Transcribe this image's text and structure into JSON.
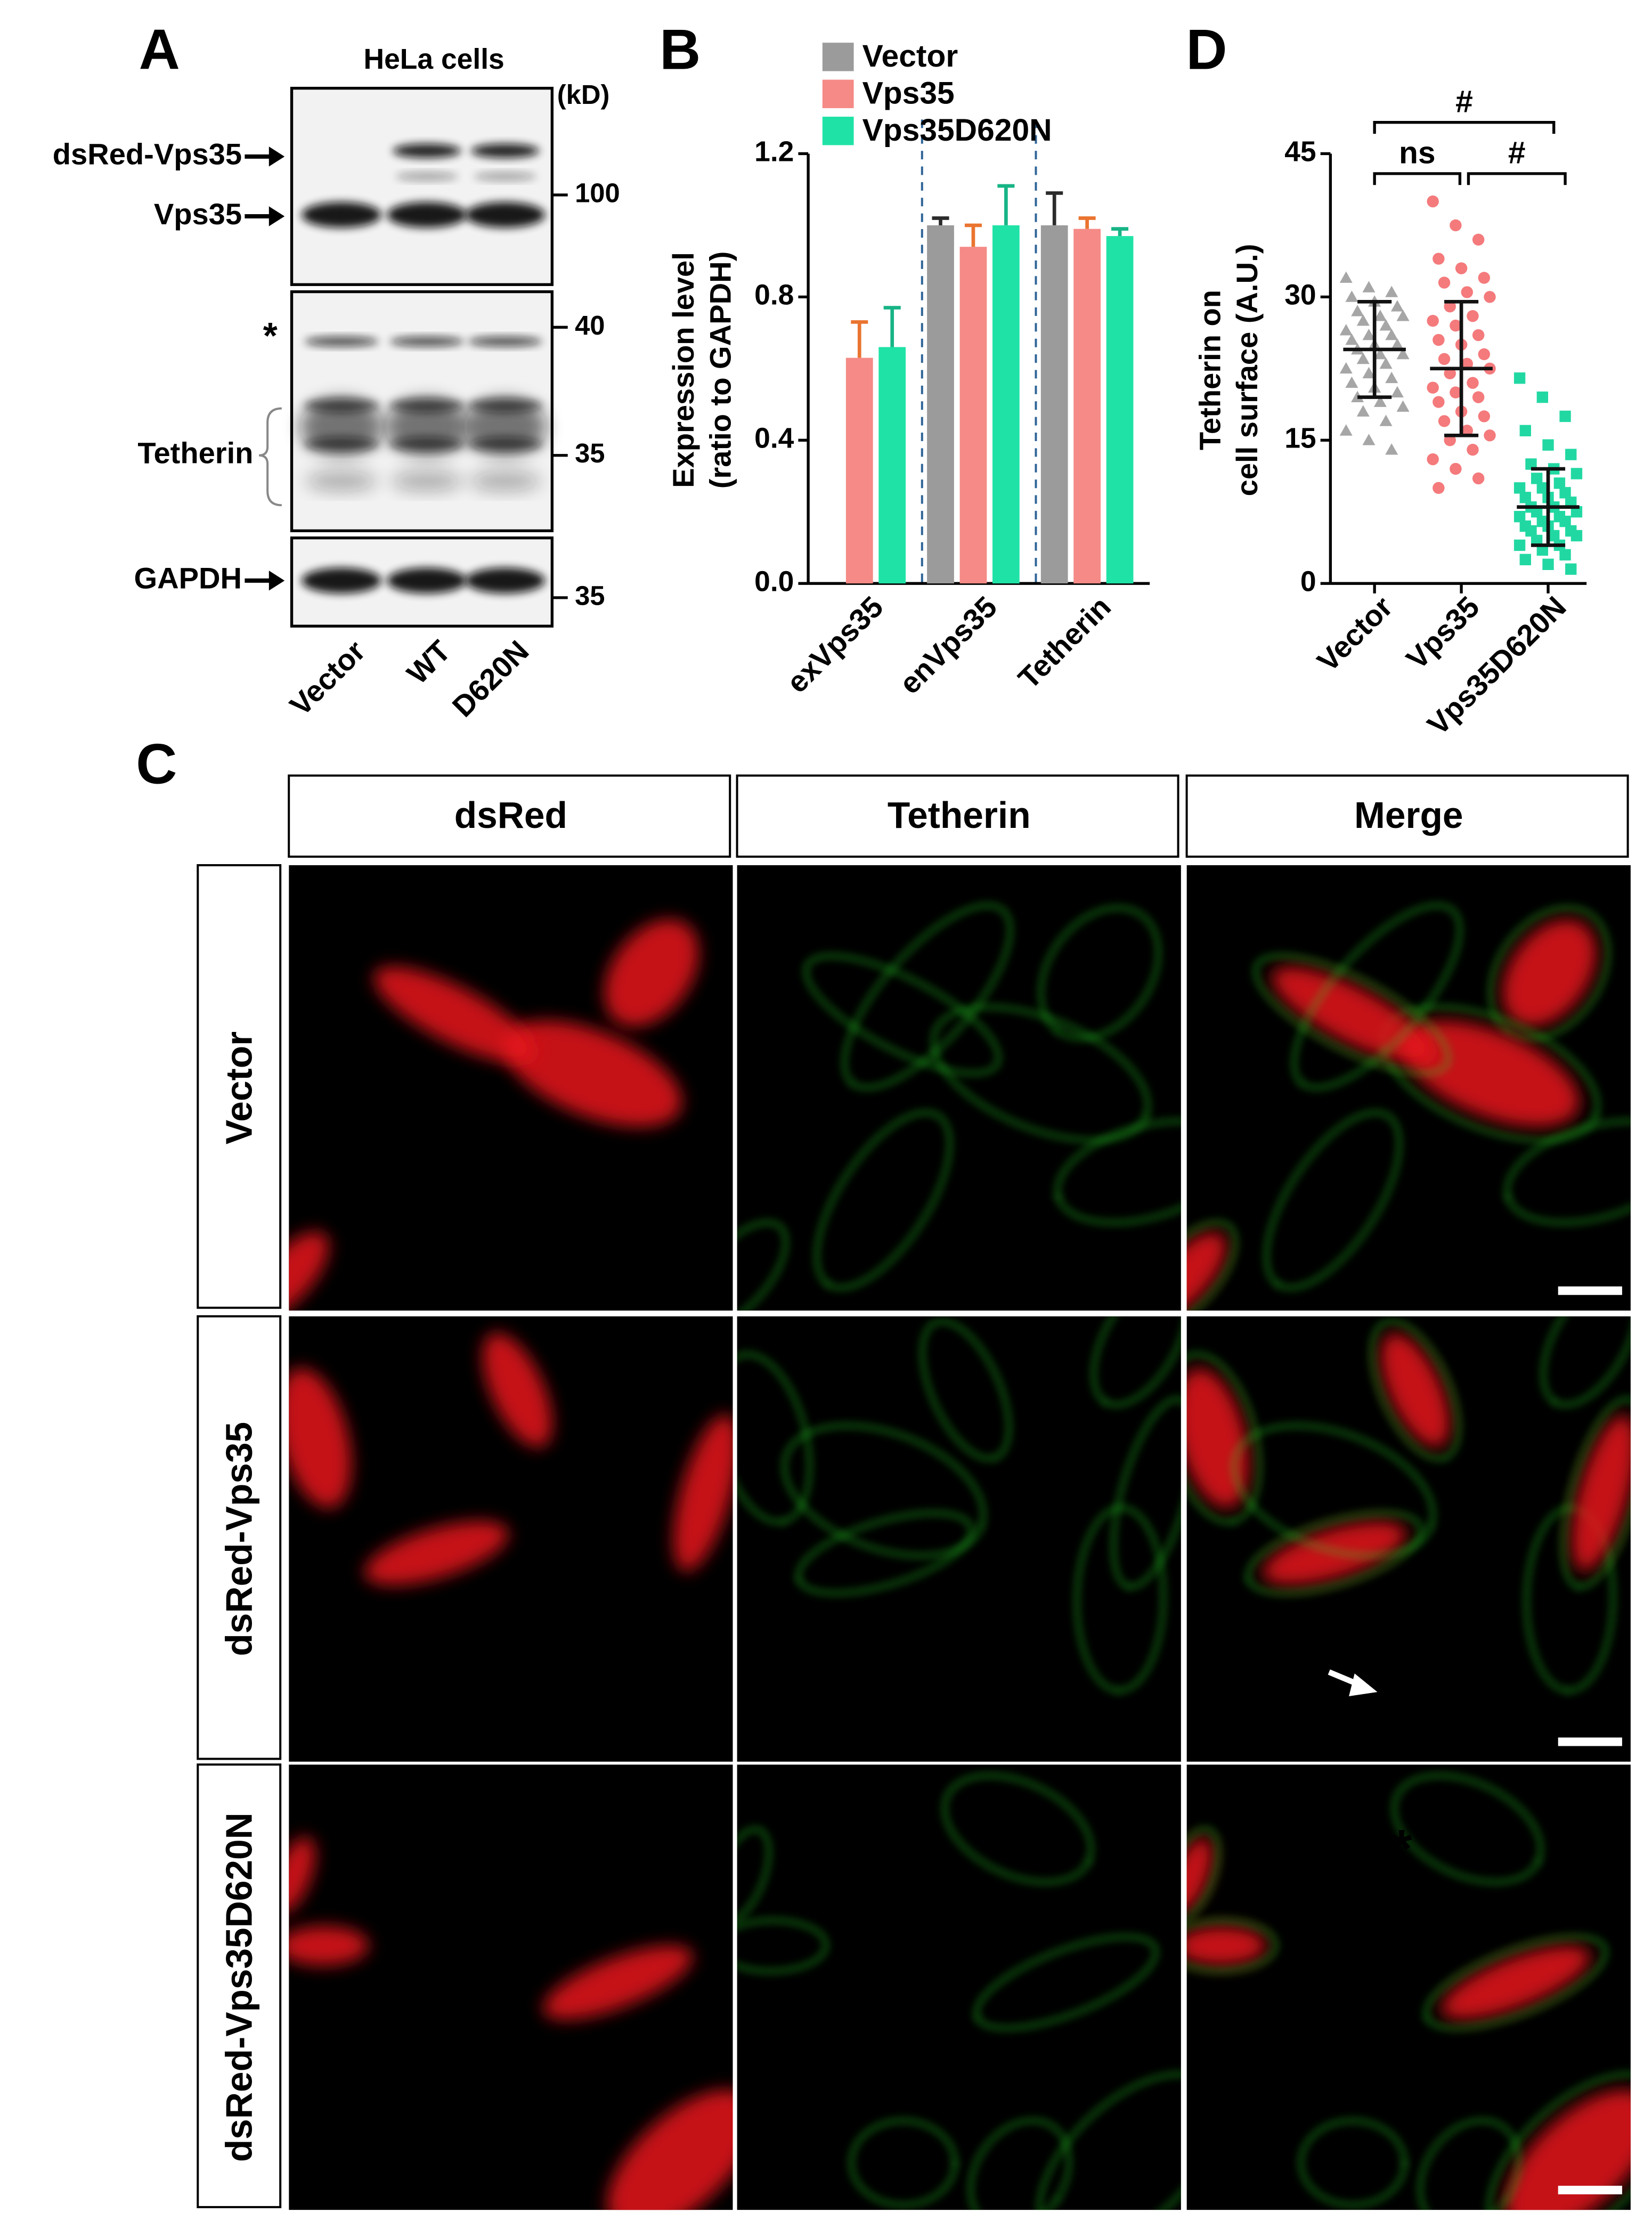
{
  "blot": {
    "panel_label": "A",
    "title": "HeLa cells",
    "unit": "(kD)",
    "row_labels": [
      "dsRed-Vps35",
      "Vps35",
      "*",
      "Tetherin",
      "GAPDH"
    ],
    "markers": [
      "100",
      "40",
      "35",
      "35"
    ],
    "lanes": [
      "Vector",
      "WT",
      "D620N"
    ]
  },
  "micrograph": {
    "panel_label": "C",
    "columns": [
      "dsRed",
      "Tetherin",
      "Merge"
    ],
    "column_colors": [
      "#f0202c",
      "#19d419",
      "#111111"
    ],
    "rows": [
      "Vector",
      "dsRed-Vps35",
      "dsRed-Vps35D620N"
    ],
    "annotation": "*"
  },
  "chart_data": [
    {
      "panel_label": "B",
      "type": "bar",
      "y_label": [
        "Expression level",
        "(ratio to GAPDH)"
      ],
      "categories": [
        "exVps35",
        "enVps35",
        "Tetherin"
      ],
      "series": [
        {
          "name": "Vector",
          "color": "#9b9b9b",
          "error_color": "#2b2b2b",
          "values": [
            null,
            1.0,
            1.0
          ],
          "errors": [
            null,
            0.02,
            0.09
          ]
        },
        {
          "name": "Vps35",
          "color": "#f58a86",
          "error_color": "#ea7430",
          "values": [
            0.63,
            0.94,
            0.99
          ],
          "errors": [
            0.1,
            0.06,
            0.03
          ]
        },
        {
          "name": "Vps35D620N",
          "color": "#1fe3a6",
          "error_color": "#17b486",
          "values": [
            0.66,
            1.0,
            0.97
          ],
          "errors": [
            0.11,
            0.11,
            0.02
          ]
        }
      ],
      "ylim": [
        0,
        1.2
      ],
      "yticks": [
        {
          "value": 0,
          "label": "0.0"
        },
        0.4,
        0.8,
        1.2
      ]
    },
    {
      "panel_label": "D",
      "type": "scatter",
      "y_label": [
        "Tetherin on",
        "cell surface (A.U.)"
      ],
      "categories": [
        "Vector",
        "Vps35",
        "Vps35D620N"
      ],
      "series": [
        {
          "color": "#a6a6a6",
          "marker": "triangle",
          "mean": 24.5,
          "sd": 5.0,
          "values": [
            32,
            31,
            30.5,
            30,
            29.5,
            29,
            28.5,
            28,
            28,
            27.5,
            27,
            26.5,
            26,
            26,
            25.5,
            25,
            25,
            24.5,
            24,
            24,
            23.5,
            23,
            22.5,
            22,
            21.5,
            21,
            20.5,
            20,
            19.5,
            19,
            18.5,
            18,
            17,
            16,
            15,
            14
          ]
        },
        {
          "color": "#f47a7c",
          "marker": "circle",
          "mean": 22.5,
          "sd": 7.0,
          "values": [
            40,
            37.5,
            36,
            34,
            33,
            32,
            31.5,
            30.5,
            30,
            29,
            28,
            27.5,
            27,
            26,
            25.5,
            25,
            24,
            23.5,
            23,
            22.5,
            22,
            21,
            20.5,
            20,
            19.5,
            19,
            18,
            17.5,
            17,
            16,
            15.5,
            15,
            14,
            13,
            12,
            11,
            10
          ]
        },
        {
          "color": "#22d8a2",
          "marker": "square",
          "mean": 8.0,
          "sd": 4.0,
          "values": [
            21.5,
            19.5,
            17.5,
            16,
            14.5,
            13.5,
            12.5,
            12,
            11.5,
            11,
            10.5,
            10,
            10,
            9.5,
            9,
            9,
            8.5,
            8,
            8,
            7.5,
            7.5,
            7,
            7,
            6.5,
            6.5,
            6,
            6,
            5.5,
            5.5,
            5,
            5,
            4.5,
            4,
            4,
            3.5,
            3,
            2.5,
            2,
            1.5
          ]
        }
      ],
      "ylim": [
        0,
        45
      ],
      "yticks": [
        0,
        15,
        30,
        45
      ],
      "annotations": [
        "#",
        "ns",
        "#"
      ]
    }
  ]
}
